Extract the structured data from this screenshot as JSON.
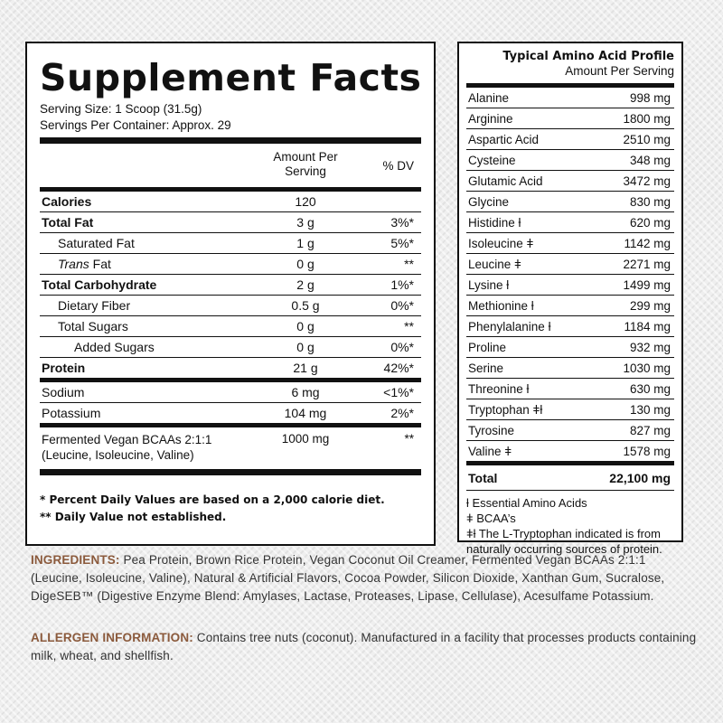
{
  "supplement_facts": {
    "title": "Supplement Facts",
    "serving_size": "Serving Size: 1 Scoop (31.5g)",
    "servings_per_container": "Servings Per Container: Approx. 29",
    "amount_header_line1": "Amount Per",
    "amount_header_line2": "Serving",
    "dv_header": "% DV",
    "rows": [
      {
        "label": "Calories",
        "amount": "120",
        "dv": ""
      },
      {
        "label": "Total Fat",
        "amount": "3 g",
        "dv": "3%*"
      },
      {
        "label": "Saturated Fat",
        "amount": "1 g",
        "dv": "5%*"
      },
      {
        "label_italic": "Trans",
        "label_rest": " Fat",
        "amount": "0 g",
        "dv": "**"
      },
      {
        "label": "Total Carbohydrate",
        "amount": "2 g",
        "dv": "1%*"
      },
      {
        "label": "Dietary Fiber",
        "amount": "0.5 g",
        "dv": "0%*"
      },
      {
        "label": "Total Sugars",
        "amount": "0 g",
        "dv": "**"
      },
      {
        "label": "Added Sugars",
        "amount": "0 g",
        "dv": "0%*"
      },
      {
        "label": "Protein",
        "amount": "21 g",
        "dv": "42%*"
      },
      {
        "label": "Sodium",
        "amount": "6 mg",
        "dv": "<1%*"
      },
      {
        "label": "Potassium",
        "amount": "104 mg",
        "dv": "2%*"
      }
    ],
    "bcaa": {
      "label_line1": "Fermented Vegan BCAAs 2:1:1",
      "label_line2": "(Leucine, Isoleucine, Valine)",
      "amount": "1000 mg",
      "dv": "**"
    },
    "footnote1": "* Percent Daily Values are based on a 2,000 calorie diet.",
    "footnote2": "** Daily Value not established."
  },
  "amino_profile": {
    "title": "Typical Amino Acid Profile",
    "subtitle": "Amount Per Serving",
    "rows": [
      {
        "name": "Alanine",
        "amount": "998 mg"
      },
      {
        "name": "Arginine",
        "amount": "1800 mg"
      },
      {
        "name": "Aspartic Acid",
        "amount": "2510 mg"
      },
      {
        "name": "Cysteine",
        "amount": "348 mg"
      },
      {
        "name": "Glutamic Acid",
        "amount": "3472 mg"
      },
      {
        "name": "Glycine",
        "amount": "830 mg"
      },
      {
        "name": "Histidine ƚ",
        "amount": "620 mg"
      },
      {
        "name": "Isoleucine ǂ",
        "amount": "1142 mg"
      },
      {
        "name": "Leucine ǂ",
        "amount": "2271 mg"
      },
      {
        "name": "Lysine ƚ",
        "amount": "1499 mg"
      },
      {
        "name": "Methionine ƚ",
        "amount": "299 mg"
      },
      {
        "name": "Phenylalanine ƚ",
        "amount": "1184 mg"
      },
      {
        "name": "Proline",
        "amount": "932 mg"
      },
      {
        "name": "Serine",
        "amount": "1030 mg"
      },
      {
        "name": "Threonine ƚ",
        "amount": "630 mg"
      },
      {
        "name": "Tryptophan ǂƚ",
        "amount": "130 mg"
      },
      {
        "name": "Tyrosine",
        "amount": "827 mg"
      },
      {
        "name": "Valine ǂ",
        "amount": "1578 mg"
      }
    ],
    "total_label": "Total",
    "total_value": "22,100 mg",
    "legend": [
      "ƚ Essential Amino Acids",
      "ǂ BCAA’s",
      "ǂƚ The L-Tryptophan indicated is from",
      "naturally occurring sources of protein."
    ]
  },
  "ingredients": {
    "heading": "INGREDIENTS:",
    "text": " Pea Protein, Brown Rice Protein, Vegan Coconut Oil Creamer, Fermented Vegan BCAAs 2:1:1 (Leucine, Isoleucine, Valine), Natural & Artificial Flavors, Cocoa Powder, Silicon Dioxide, Xanthan Gum, Sucralose, DigeSEB™ (Digestive Enzyme Blend: Amylases, Lactase, Proteases, Lipase, Cellulase), Acesulfame Potassium."
  },
  "allergen": {
    "heading": "ALLERGEN INFORMATION:",
    "text": " Contains tree nuts (coconut). Manufactured in a facility that processes products containing milk, wheat, and shellfish."
  },
  "colors": {
    "heading_brown": "#8b5a3c",
    "rule": "#111111",
    "panel_bg": "#ffffff"
  }
}
